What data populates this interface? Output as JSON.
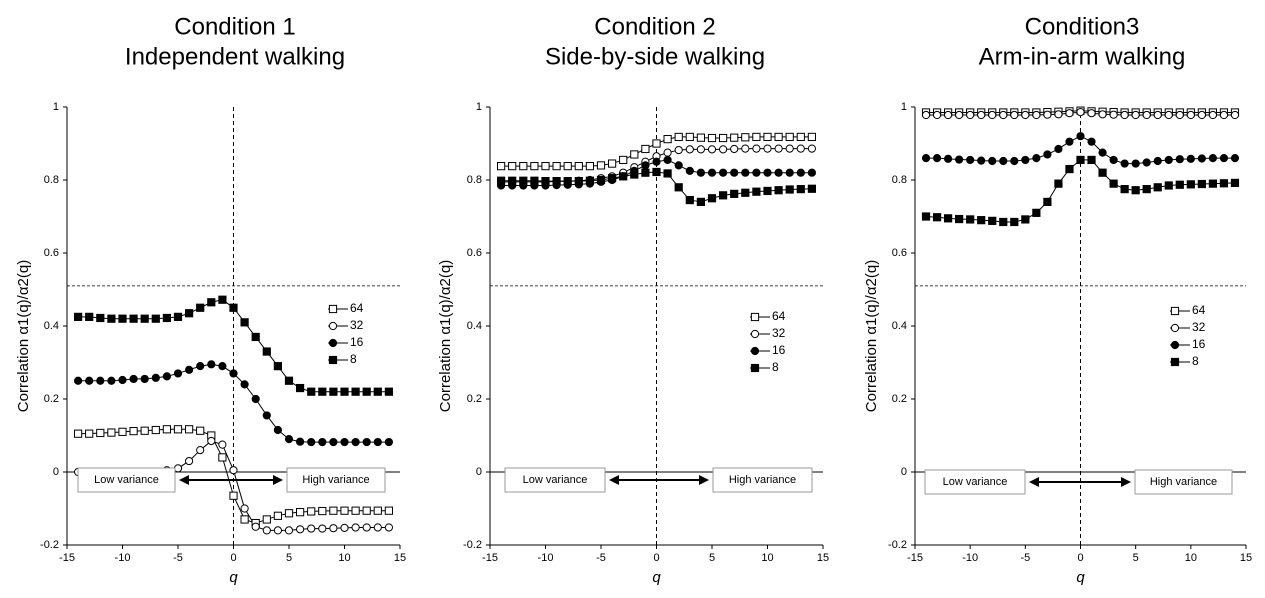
{
  "colors": {
    "line": "#000000",
    "box_border": "#999999",
    "guide": "#000000"
  },
  "chart_data": [
    {
      "type": "line",
      "title": [
        "Condition 1",
        "Independent walking"
      ],
      "xlabel": "q",
      "ylabel": "Correlation α1(q)/α2(q)",
      "xlim": [
        -15,
        15
      ],
      "ylim": [
        -0.2,
        1
      ],
      "xticks": [
        "-15",
        "-10",
        "-5",
        "0",
        "5",
        "10",
        "15"
      ],
      "yticks": [
        "-0.2",
        "0",
        "0.2",
        "0.4",
        "0.6",
        "0.8",
        "1"
      ],
      "grid": false,
      "reference_lines": {
        "vertical_x": 0,
        "horizontal_y": 0.51
      },
      "legend_position": "right",
      "annotations": {
        "left_box": "Low variance",
        "right_box": "High variance"
      },
      "x": [
        -14,
        -13,
        -12,
        -11,
        -10,
        -9,
        -8,
        -7,
        -6,
        -5,
        -4,
        -3,
        -2,
        -1,
        0,
        1,
        2,
        3,
        4,
        5,
        6,
        7,
        8,
        9,
        10,
        11,
        12,
        13,
        14
      ],
      "series": [
        {
          "name": "64",
          "marker": "open-square",
          "values": [
            0.105,
            0.105,
            0.107,
            0.108,
            0.11,
            0.112,
            0.113,
            0.115,
            0.117,
            0.117,
            0.117,
            0.113,
            0.1,
            0.04,
            -0.065,
            -0.13,
            -0.14,
            -0.13,
            -0.12,
            -0.113,
            -0.11,
            -0.108,
            -0.107,
            -0.106,
            -0.106,
            -0.106,
            -0.106,
            -0.106,
            -0.106
          ]
        },
        {
          "name": "32",
          "marker": "open-circle",
          "values": [
            0.0,
            0.0,
            0.0,
            0.0,
            0.0,
            0.0,
            0.0,
            0.0,
            0.005,
            0.01,
            0.03,
            0.06,
            0.085,
            0.075,
            0.005,
            -0.1,
            -0.15,
            -0.16,
            -0.16,
            -0.16,
            -0.157,
            -0.155,
            -0.155,
            -0.154,
            -0.153,
            -0.152,
            -0.152,
            -0.152,
            -0.152
          ]
        },
        {
          "name": "16",
          "marker": "filled-circle",
          "values": [
            0.25,
            0.25,
            0.25,
            0.25,
            0.252,
            0.255,
            0.255,
            0.258,
            0.262,
            0.27,
            0.28,
            0.29,
            0.295,
            0.29,
            0.27,
            0.24,
            0.2,
            0.155,
            0.115,
            0.09,
            0.083,
            0.082,
            0.082,
            0.082,
            0.082,
            0.082,
            0.082,
            0.082,
            0.082
          ]
        },
        {
          "name": "8",
          "marker": "filled-square",
          "values": [
            0.425,
            0.425,
            0.422,
            0.42,
            0.42,
            0.42,
            0.42,
            0.42,
            0.422,
            0.425,
            0.435,
            0.45,
            0.465,
            0.472,
            0.45,
            0.41,
            0.37,
            0.33,
            0.29,
            0.25,
            0.23,
            0.22,
            0.22,
            0.22,
            0.22,
            0.22,
            0.22,
            0.22,
            0.22
          ]
        }
      ]
    },
    {
      "type": "line",
      "title": [
        "Condition 2",
        "Side-by-side walking"
      ],
      "xlabel": "q",
      "ylabel": "Correlation α1(q)/α2(q)",
      "xlim": [
        -15,
        15
      ],
      "ylim": [
        -0.2,
        1
      ],
      "xticks": [
        "-15",
        "-10",
        "-5",
        "0",
        "5",
        "10",
        "15"
      ],
      "yticks": [
        "-0.2",
        "0",
        "0.2",
        "0.4",
        "0.6",
        "0.8",
        "1"
      ],
      "grid": false,
      "reference_lines": {
        "vertical_x": 0,
        "horizontal_y": 0.51
      },
      "legend_position": "right",
      "annotations": {
        "left_box": "Low variance",
        "right_box": "High variance"
      },
      "x": [
        -14,
        -13,
        -12,
        -11,
        -10,
        -9,
        -8,
        -7,
        -6,
        -5,
        -4,
        -3,
        -2,
        -1,
        0,
        1,
        2,
        3,
        4,
        5,
        6,
        7,
        8,
        9,
        10,
        11,
        12,
        13,
        14
      ],
      "series": [
        {
          "name": "64",
          "marker": "open-square",
          "values": [
            0.838,
            0.838,
            0.838,
            0.838,
            0.838,
            0.838,
            0.838,
            0.838,
            0.838,
            0.84,
            0.845,
            0.855,
            0.87,
            0.885,
            0.9,
            0.912,
            0.918,
            0.918,
            0.916,
            0.915,
            0.915,
            0.916,
            0.917,
            0.918,
            0.918,
            0.918,
            0.918,
            0.918,
            0.918
          ]
        },
        {
          "name": "32",
          "marker": "open-circle",
          "values": [
            0.795,
            0.795,
            0.795,
            0.795,
            0.795,
            0.796,
            0.797,
            0.798,
            0.8,
            0.805,
            0.81,
            0.82,
            0.835,
            0.85,
            0.865,
            0.875,
            0.882,
            0.884,
            0.884,
            0.884,
            0.884,
            0.885,
            0.886,
            0.886,
            0.886,
            0.886,
            0.886,
            0.886,
            0.886
          ]
        },
        {
          "name": "16",
          "marker": "filled-circle",
          "values": [
            0.785,
            0.785,
            0.785,
            0.785,
            0.785,
            0.786,
            0.787,
            0.788,
            0.79,
            0.795,
            0.8,
            0.81,
            0.825,
            0.84,
            0.85,
            0.855,
            0.84,
            0.825,
            0.82,
            0.82,
            0.82,
            0.82,
            0.82,
            0.82,
            0.82,
            0.82,
            0.82,
            0.82,
            0.82
          ]
        },
        {
          "name": "8",
          "marker": "filled-square",
          "values": [
            0.798,
            0.798,
            0.798,
            0.798,
            0.797,
            0.797,
            0.797,
            0.797,
            0.798,
            0.8,
            0.805,
            0.81,
            0.815,
            0.82,
            0.822,
            0.818,
            0.78,
            0.745,
            0.74,
            0.75,
            0.758,
            0.762,
            0.765,
            0.768,
            0.77,
            0.772,
            0.774,
            0.775,
            0.776
          ]
        }
      ]
    },
    {
      "type": "line",
      "title": [
        "Condition3",
        "Arm-in-arm walking"
      ],
      "xlabel": "q",
      "ylabel": "Correlation α1(q)/α2(q)",
      "xlim": [
        -15,
        15
      ],
      "ylim": [
        -0.2,
        1
      ],
      "xticks": [
        "-15",
        "-10",
        "-5",
        "0",
        "5",
        "10",
        "15"
      ],
      "yticks": [
        "-0.2",
        "0",
        "0.2",
        "0.4",
        "0.6",
        "0.8",
        "1"
      ],
      "grid": false,
      "reference_lines": {
        "vertical_x": 0,
        "horizontal_y": 0.51
      },
      "legend_position": "right",
      "annotations": {
        "left_box": "Low variance",
        "right_box": "High variance"
      },
      "x": [
        -14,
        -13,
        -12,
        -11,
        -10,
        -9,
        -8,
        -7,
        -6,
        -5,
        -4,
        -3,
        -2,
        -1,
        0,
        1,
        2,
        3,
        4,
        5,
        6,
        7,
        8,
        9,
        10,
        11,
        12,
        13,
        14
      ],
      "series": [
        {
          "name": "64",
          "marker": "open-square",
          "values": [
            0.985,
            0.985,
            0.985,
            0.985,
            0.985,
            0.985,
            0.985,
            0.985,
            0.985,
            0.985,
            0.985,
            0.986,
            0.987,
            0.988,
            0.99,
            0.988,
            0.987,
            0.986,
            0.985,
            0.985,
            0.985,
            0.985,
            0.985,
            0.985,
            0.985,
            0.985,
            0.985,
            0.985,
            0.985
          ]
        },
        {
          "name": "32",
          "marker": "open-circle",
          "values": [
            0.978,
            0.978,
            0.978,
            0.978,
            0.978,
            0.978,
            0.978,
            0.978,
            0.978,
            0.978,
            0.978,
            0.979,
            0.98,
            0.983,
            0.986,
            0.983,
            0.98,
            0.979,
            0.978,
            0.978,
            0.978,
            0.978,
            0.978,
            0.978,
            0.978,
            0.978,
            0.978,
            0.978,
            0.978
          ]
        },
        {
          "name": "16",
          "marker": "filled-circle",
          "values": [
            0.86,
            0.86,
            0.858,
            0.856,
            0.855,
            0.853,
            0.852,
            0.852,
            0.852,
            0.855,
            0.86,
            0.87,
            0.885,
            0.905,
            0.92,
            0.905,
            0.875,
            0.855,
            0.845,
            0.845,
            0.848,
            0.852,
            0.855,
            0.857,
            0.858,
            0.859,
            0.86,
            0.86,
            0.86
          ]
        },
        {
          "name": "8",
          "marker": "filled-square",
          "values": [
            0.7,
            0.698,
            0.695,
            0.693,
            0.692,
            0.69,
            0.688,
            0.685,
            0.685,
            0.692,
            0.71,
            0.74,
            0.79,
            0.83,
            0.855,
            0.855,
            0.82,
            0.79,
            0.775,
            0.772,
            0.775,
            0.78,
            0.785,
            0.787,
            0.788,
            0.789,
            0.79,
            0.791,
            0.792
          ]
        }
      ]
    }
  ]
}
